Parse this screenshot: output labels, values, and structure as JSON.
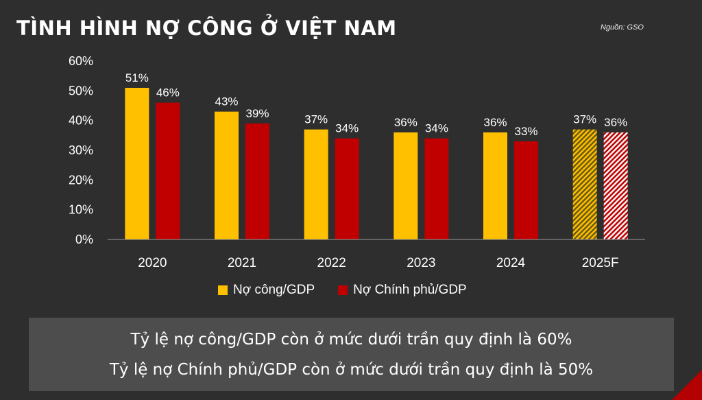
{
  "header": {
    "title": "TÌNH HÌNH NỢ CÔNG Ở VIỆT NAM",
    "source": "Nguồn: GSO"
  },
  "colors": {
    "public_debt": "#ffc000",
    "government_debt": "#c00000",
    "background": "#2e2e2e"
  },
  "chart_data": {
    "type": "bar",
    "categories": [
      "2020",
      "2021",
      "2022",
      "2023",
      "2024",
      "2025F"
    ],
    "series": [
      {
        "name": "Nợ công/GDP",
        "values": [
          51,
          43,
          37,
          36,
          36,
          37
        ],
        "labels": [
          "51%",
          "43%",
          "37%",
          "36%",
          "36%",
          "37%"
        ]
      },
      {
        "name": "Nợ Chính phủ/GDP",
        "values": [
          46,
          39,
          34,
          34,
          33,
          36
        ],
        "labels": [
          "46%",
          "39%",
          "34%",
          "34%",
          "33%",
          "36%"
        ]
      }
    ],
    "forecast_categories": [
      "2025F"
    ],
    "ylim": [
      0,
      60
    ],
    "yticks": [
      "0%",
      "10%",
      "20%",
      "30%",
      "40%",
      "50%",
      "60%"
    ],
    "grid": false,
    "legend": "bottom"
  },
  "notes": [
    "Tỷ lệ nợ công/GDP còn ở mức dưới trần quy định là 60%",
    "Tỷ lệ nợ Chính phủ/GDP còn ở mức dưới trần quy định là 50%"
  ]
}
